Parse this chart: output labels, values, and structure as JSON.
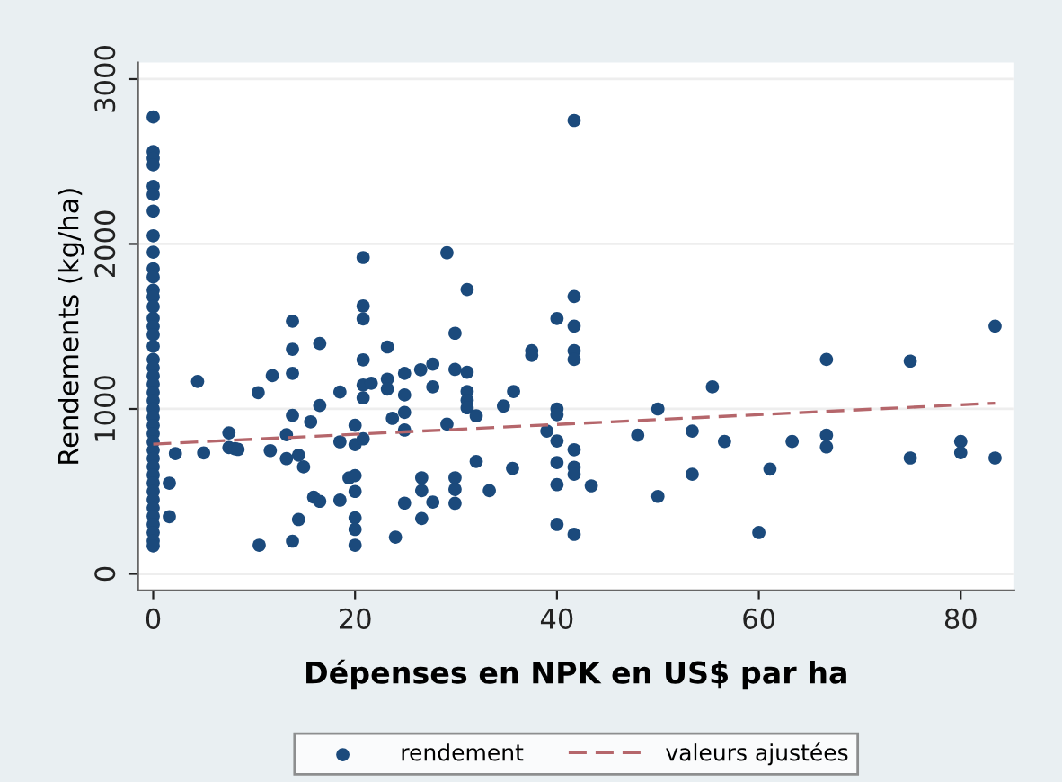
{
  "chart_data": {
    "type": "scatter",
    "xlabel": "Dépenses en NPK en US$ par ha",
    "ylabel": "Rendements (kg/ha)",
    "xlim": [
      -1.5,
      85.3
    ],
    "ylim": [
      -100,
      3100
    ],
    "xticks": [
      0,
      20,
      40,
      60,
      80
    ],
    "yticks": [
      0,
      1000,
      2000,
      3000
    ],
    "grid": "y",
    "legend": "bottom",
    "series": [
      {
        "name": "rendement",
        "marker": "circle",
        "color": "#1b4a7c",
        "x": [
          0,
          0,
          0,
          0,
          0,
          0,
          0,
          0,
          0,
          0,
          0,
          0,
          0,
          0,
          0,
          0,
          0,
          0,
          0,
          0,
          0,
          0,
          0,
          0,
          0,
          0,
          0,
          0,
          0,
          0,
          0,
          0,
          0,
          0,
          0,
          0,
          0,
          0,
          0,
          0,
          0,
          0,
          1.6,
          1.6,
          2.2,
          4.4,
          5,
          7.5,
          7.5,
          8.1,
          8.4,
          10.5,
          10.4,
          11.6,
          11.8,
          13.2,
          13.2,
          13.8,
          13.8,
          13.8,
          13.8,
          13.8,
          14.4,
          14.4,
          14.9,
          15.6,
          15.9,
          16.5,
          16.5,
          16.5,
          18.5,
          18.5,
          18.5,
          19.4,
          20,
          20,
          20,
          20,
          20,
          20,
          20,
          20.8,
          20.8,
          20.8,
          20.8,
          20.8,
          20.8,
          20.8,
          21.6,
          23.2,
          23.2,
          23.2,
          24,
          23.7,
          24.9,
          24.9,
          24.9,
          24.9,
          24.9,
          26.5,
          41.7,
          29.1,
          31.1,
          29.9,
          27.7,
          27.7,
          26.6,
          26.6,
          26.6,
          27.7,
          29.9,
          29.9,
          29.9,
          29.9,
          29.1,
          31.1,
          31.1,
          31.1,
          31.1,
          32,
          32,
          33.3,
          34.7,
          35.7,
          35.6,
          37.5,
          37.5,
          39,
          40,
          40,
          40,
          40,
          40,
          40,
          40,
          41.7,
          41.7,
          41.7,
          41.7,
          41.7,
          41.7,
          41.7,
          41.7,
          43.4,
          48,
          50,
          50,
          53.4,
          53.4,
          55.4,
          83.4,
          66.7,
          75,
          56.6,
          63.3,
          66.7,
          66.7,
          75,
          80,
          80,
          83.4,
          61.1,
          60
        ],
        "values": [
          2770,
          2560,
          2520,
          2480,
          2350,
          2300,
          2200,
          2050,
          1950,
          1850,
          1800,
          1720,
          1680,
          1620,
          1550,
          1500,
          1450,
          1380,
          1300,
          1250,
          1200,
          1150,
          1100,
          1050,
          1000,
          950,
          900,
          850,
          800,
          750,
          700,
          650,
          600,
          550,
          500,
          450,
          400,
          350,
          300,
          250,
          200,
          170,
          550,
          347,
          730,
          1167,
          734,
          855,
          766,
          759,
          755,
          174,
          1099,
          748,
          1202,
          844,
          699,
          1532,
          1362,
          1216,
          961,
          199,
          720,
          330,
          649,
          922,
          465,
          1397,
          1021,
          440,
          1103,
          801,
          447,
          582,
          901,
          784,
          596,
          500,
          340,
          270,
          174,
          1918,
          1624,
          1546,
          1298,
          1145,
          1067,
          819,
          1156,
          1376,
          1181,
          1121,
          223,
          943,
          1216,
          1085,
          979,
          872,
          429,
          1238,
          2749,
          1947,
          1724,
          1459,
          1272,
          1134,
          583,
          505,
          336,
          435,
          1240,
          583,
          512,
          428,
          908,
          1223,
          1106,
          1053,
          1007,
          958,
          682,
          505,
          1018,
          1106,
          640,
          1353,
          1325,
          866,
          1548,
          1000,
          965,
          806,
          675,
          541,
          300,
          1682,
          1502,
          1353,
          1300,
          753,
          647,
          604,
          240,
          534,
          841,
          1000,
          470,
          866,
          604,
          1134,
          1502,
          1300,
          1290,
          803,
          803,
          841,
          770,
          703,
          803,
          735,
          703,
          636,
          251
        ]
      },
      {
        "name": "valeurs ajustées",
        "type": "line",
        "color": "#b5666b",
        "line_style": "dashed",
        "marker": "none",
        "x": [
          0,
          83.4
        ],
        "values": [
          787,
          1035
        ]
      }
    ]
  }
}
